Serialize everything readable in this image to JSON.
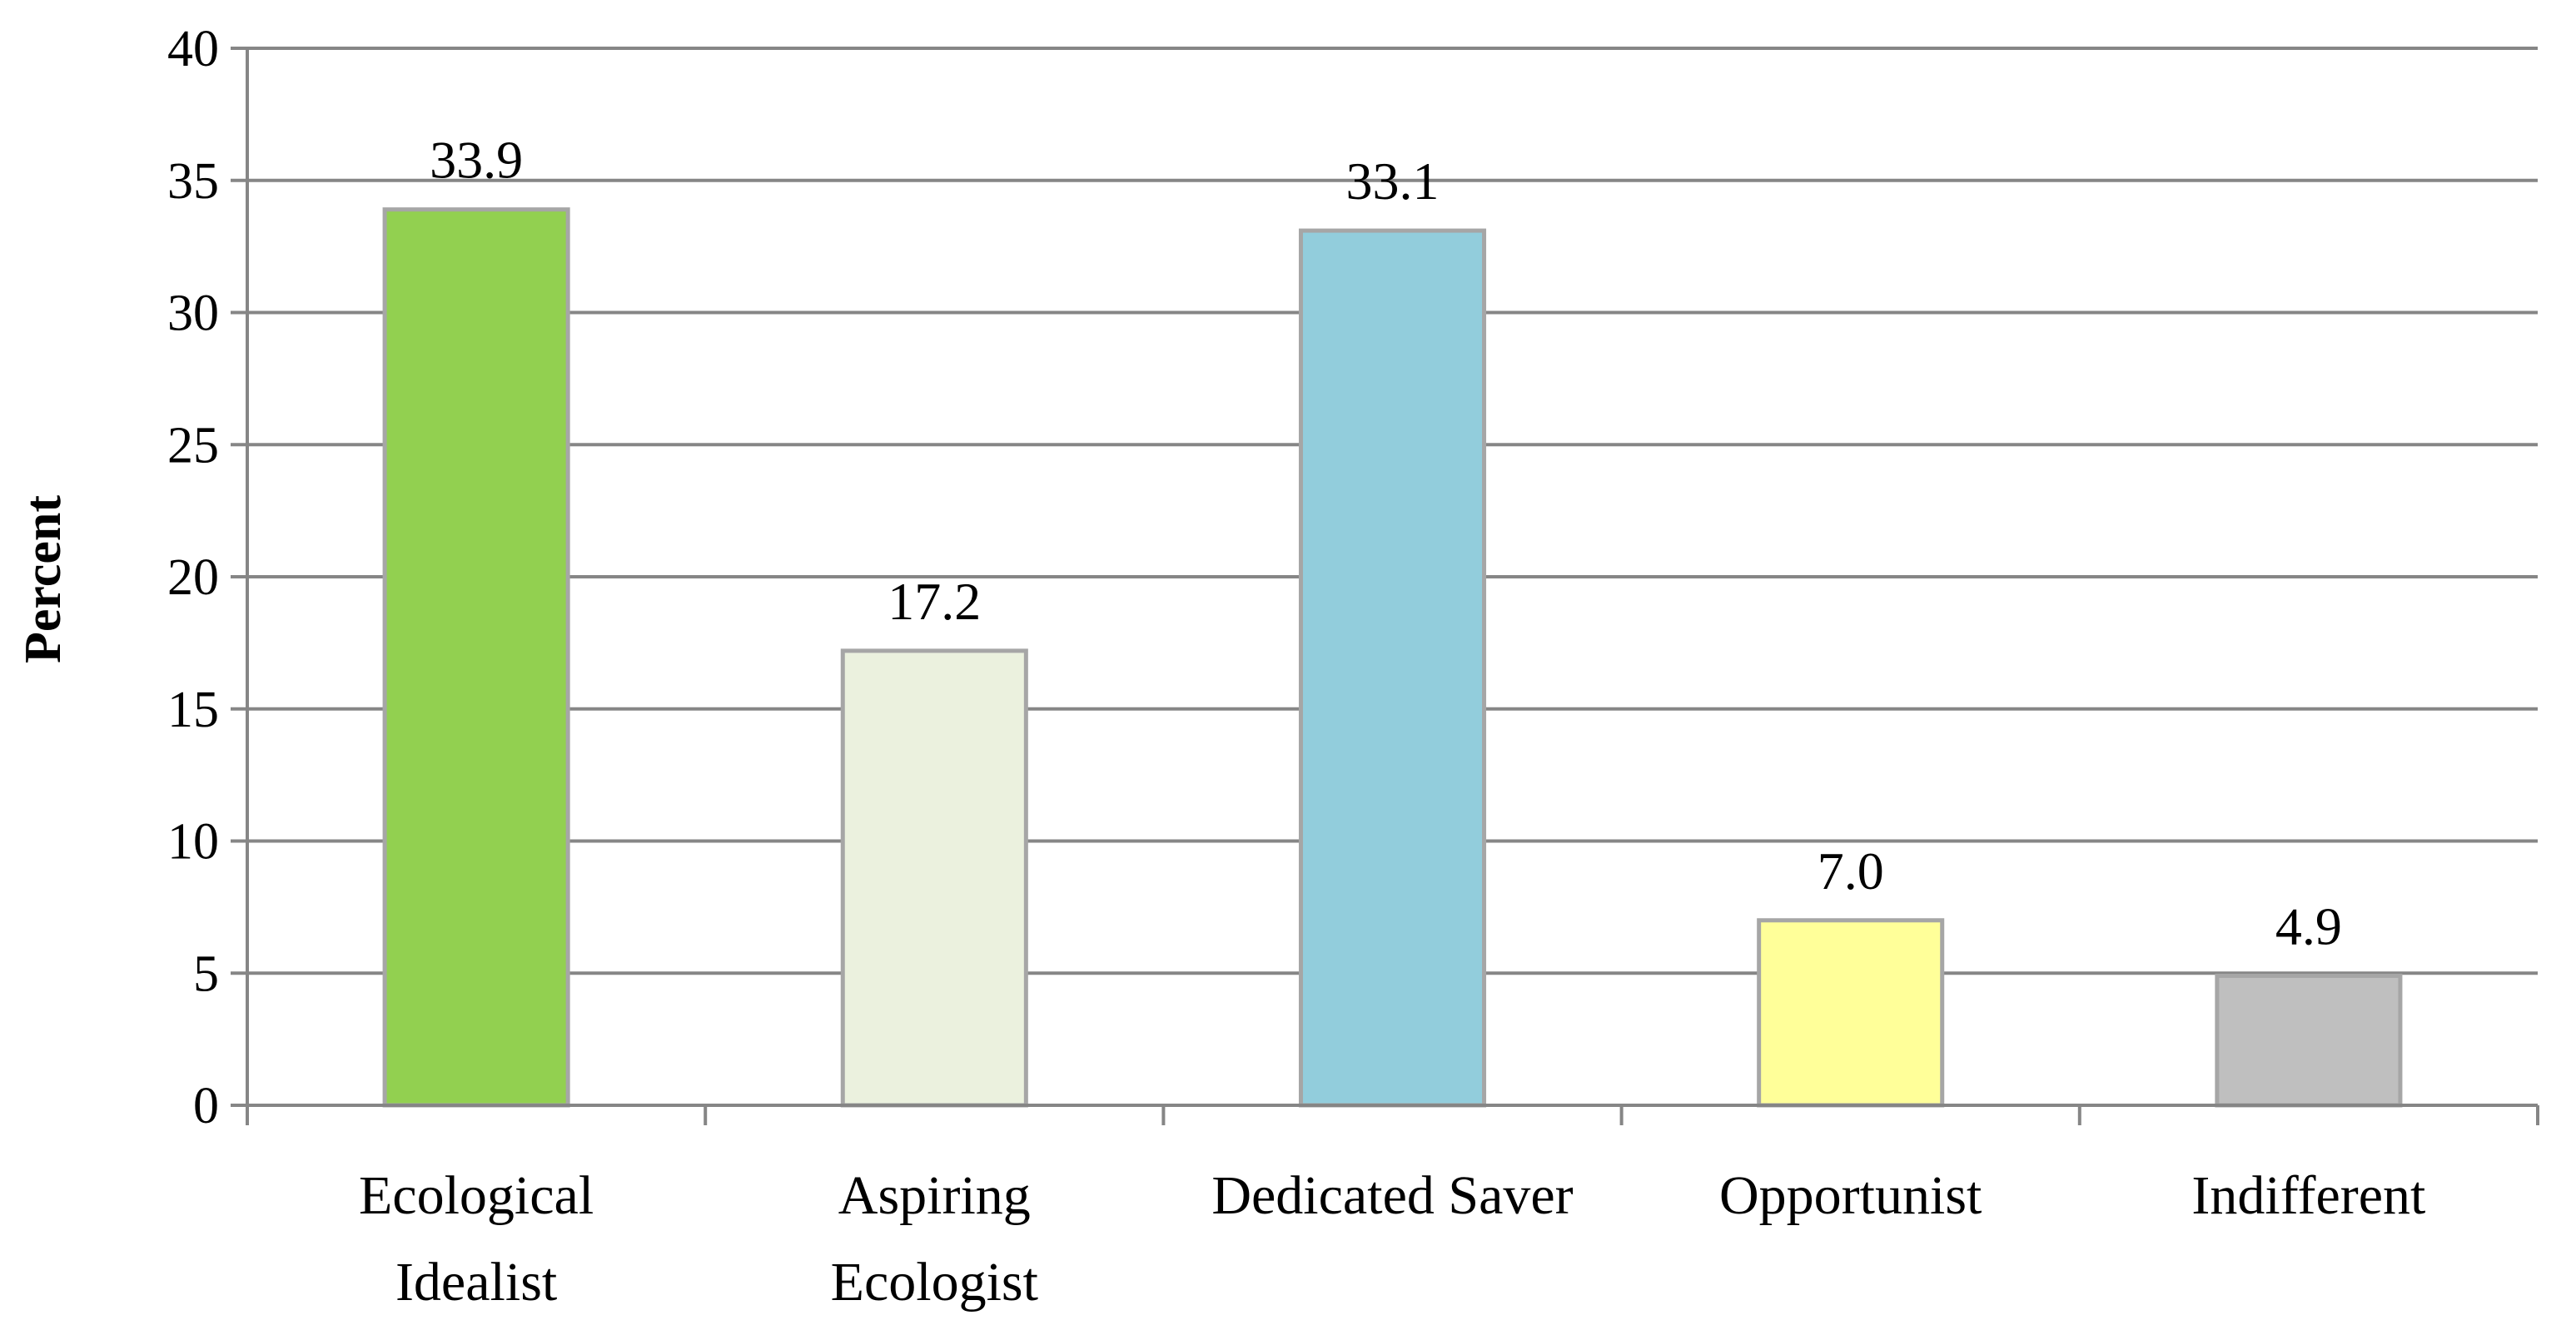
{
  "chart_data": {
    "type": "bar",
    "title": "",
    "xlabel": "",
    "ylabel": "Percent",
    "ylim": [
      0,
      40
    ],
    "yticks": [
      0,
      5,
      10,
      15,
      20,
      25,
      30,
      35,
      40
    ],
    "grid": true,
    "legend": "none",
    "categories": [
      [
        "Ecological",
        "Idealist"
      ],
      [
        "Aspiring",
        "Ecologist"
      ],
      [
        "Dedicated Saver"
      ],
      [
        "Opportunist"
      ],
      [
        "Indifferent"
      ]
    ],
    "values": [
      33.9,
      17.2,
      33.1,
      7.0,
      4.9
    ],
    "data_labels": [
      "33.9",
      "17.2",
      "33.1",
      "7.0",
      "4.9"
    ],
    "bar_colors": [
      "#92d050",
      "#ebf1de",
      "#92cddc",
      "#ffff99",
      "#bfbfbf"
    ],
    "bar_outline_color": "#a6a6a6",
    "gridline_color": "#868686",
    "axis_color": "#868686"
  }
}
